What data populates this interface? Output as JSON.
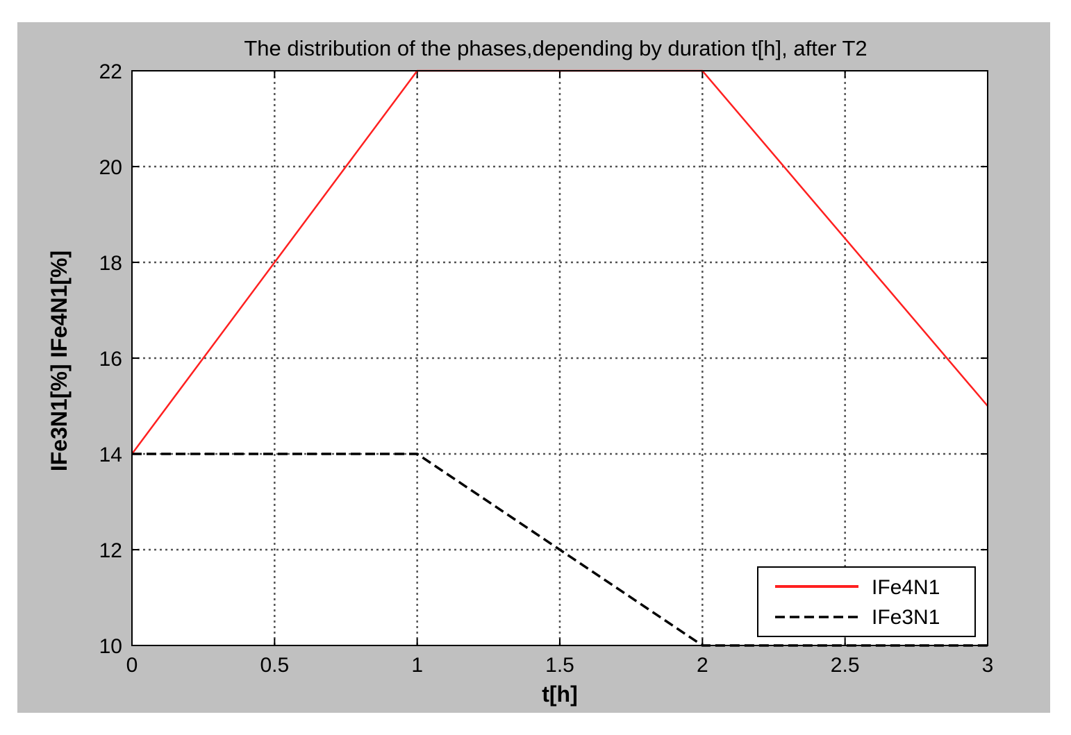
{
  "chart_data": {
    "type": "line",
    "title": "The distribution of the phases,depending by duration t[h], after T2",
    "xlabel": "t[h]",
    "ylabel": "IFe3N1[%] IFe4N1[%]",
    "xlim": [
      0,
      3
    ],
    "ylim": [
      10,
      22
    ],
    "xticks": [
      0,
      0.5,
      1,
      1.5,
      2,
      2.5,
      3
    ],
    "xtick_labels": [
      "0",
      "0.5",
      "1",
      "1.5",
      "2",
      "2.5",
      "3"
    ],
    "yticks": [
      10,
      12,
      14,
      16,
      18,
      20,
      22
    ],
    "ytick_labels": [
      "10",
      "12",
      "14",
      "16",
      "18",
      "20",
      "22"
    ],
    "grid": true,
    "legend_position": "bottom-right",
    "colors": {
      "figure_background": "#c0c0c0",
      "axes_background": "#ffffff",
      "grid": "#555555"
    },
    "series": [
      {
        "name": "IFe4N1",
        "color": "#ff2020",
        "line_style": "solid",
        "x": [
          0,
          1,
          2,
          3
        ],
        "y": [
          14,
          22,
          22,
          15
        ]
      },
      {
        "name": "IFe3N1",
        "color": "#000000",
        "line_style": "dashed",
        "x": [
          0,
          1,
          2,
          3
        ],
        "y": [
          14,
          14,
          10,
          10
        ]
      }
    ]
  }
}
